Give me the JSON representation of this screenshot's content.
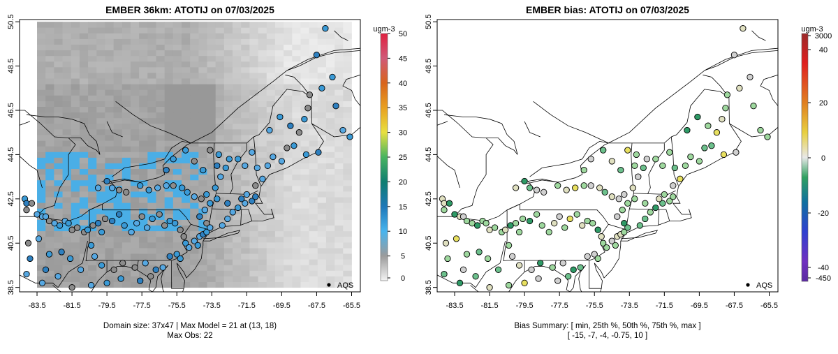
{
  "chart_data": [
    {
      "type": "heatmap",
      "title": "EMBER 36km: ATOTIJ on 07/03/2025",
      "x_ticks": [
        "-83.5",
        "-81.5",
        "-79.5",
        "-77.5",
        "-75.5",
        "-73.5",
        "-71.5",
        "-69.5",
        "-67.5",
        "-65.5"
      ],
      "y_ticks": [
        "50.5",
        "48.5",
        "46.5",
        "44.5",
        "42.5",
        "40.5",
        "38.5"
      ],
      "xlim": [
        -84.5,
        -65.0
      ],
      "ylim": [
        38.3,
        50.6
      ],
      "colorbar": {
        "unit": "ugm-3",
        "min": 0,
        "max": 50,
        "tick_values": [
          0,
          5,
          10,
          15,
          20,
          25,
          30,
          35,
          40,
          45,
          50
        ],
        "tick_labels": [
          "0",
          "5",
          "10",
          "15",
          "20",
          "25",
          "30",
          "35",
          "40",
          "45",
          "50"
        ],
        "colors": [
          "#f4f4f4",
          "#9b9b9b",
          "#48b4ee",
          "#1e78b8",
          "#0f7d70",
          "#48b460",
          "#e8e040",
          "#e8a020",
          "#d8641c",
          "#d05a78",
          "#e02040"
        ]
      },
      "legend": "AQS",
      "caption_lines": [
        "Domain size: 37x47 | Max Model = 21 at (13, 18)",
        "Max Obs: 22"
      ]
    },
    {
      "type": "scatter",
      "title": "EMBER bias: ATOTIJ on 07/03/2025",
      "x_ticks": [
        "-83.5",
        "-81.5",
        "-79.5",
        "-77.5",
        "-75.5",
        "-73.5",
        "-71.5",
        "-69.5",
        "-67.5",
        "-65.5"
      ],
      "y_ticks": [
        "50.5",
        "48.5",
        "46.5",
        "44.5",
        "42.5",
        "40.5",
        "38.5"
      ],
      "xlim": [
        -84.5,
        -65.0
      ],
      "ylim": [
        38.3,
        50.6
      ],
      "colorbar": {
        "unit": "ugm-3",
        "tick_values": [
          3000,
          40,
          20,
          0,
          -20,
          -40,
          -450
        ],
        "tick_labels": [
          "3000",
          "40",
          "20",
          "0",
          "-20",
          "-40",
          "-450"
        ],
        "colors": [
          "#9b2a2a",
          "#e02020",
          "#e08020",
          "#e8d040",
          "#e8e8e8",
          "#30a060",
          "#1070a0",
          "#3040d0",
          "#7030c0",
          "#5a2aa0"
        ]
      },
      "legend": "AQS",
      "caption_lines": [
        "Bias Summary: [ min, 25th %, 50th %, 75th %, max ]",
        "[ -15,   -7,   -4,   -0.75,   10 ]"
      ],
      "bias_summary": {
        "min": -15,
        "p25": -7,
        "p50": -4,
        "p75": -0.75,
        "max": 10
      }
    }
  ]
}
